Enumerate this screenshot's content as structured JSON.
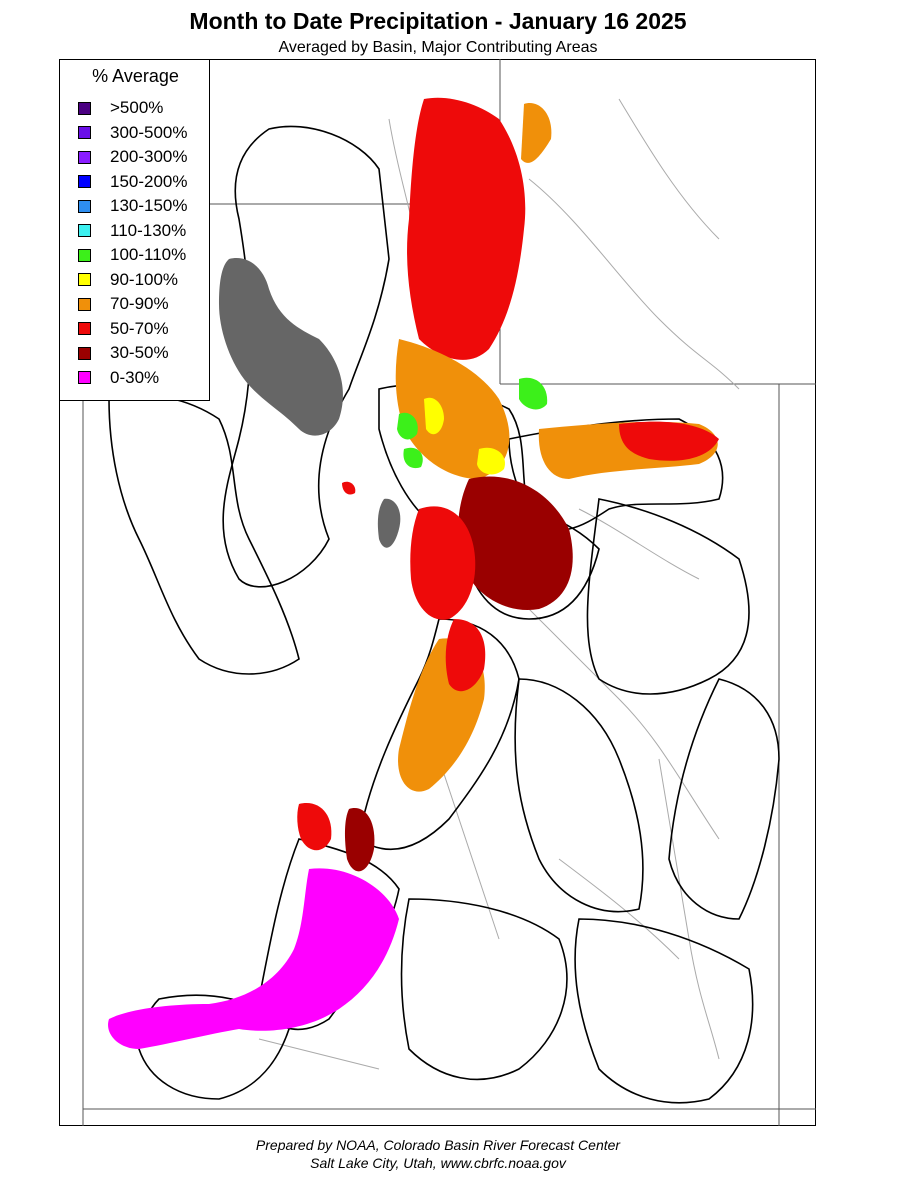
{
  "title": "Month to Date Precipitation - January 16 2025",
  "subtitle": "Averaged by Basin, Major Contributing Areas",
  "legend": {
    "title": "% Average",
    "items": [
      {
        "label": ">500%",
        "color": "#4b0082"
      },
      {
        "label": "300-500%",
        "color": "#6a0ee8"
      },
      {
        "label": "200-300%",
        "color": "#8a1cff"
      },
      {
        "label": "150-200%",
        "color": "#0000ff"
      },
      {
        "label": "130-150%",
        "color": "#2e8ef0"
      },
      {
        "label": "110-130%",
        "color": "#3cf0f0"
      },
      {
        "label": "100-110%",
        "color": "#3cf01a"
      },
      {
        "label": "90-100%",
        "color": "#ffff00"
      },
      {
        "label": "70-90%",
        "color": "#f0900a"
      },
      {
        "label": "50-70%",
        "color": "#ee0a0a"
      },
      {
        "label": "30-50%",
        "color": "#9a0000"
      },
      {
        "label": "0-30%",
        "color": "#ff00ff"
      }
    ]
  },
  "colors": {
    "lake": "#666666",
    "basin_outline": "#000000",
    "river": "#aaaaaa",
    "state_line": "#555555"
  },
  "footer": {
    "line1": "Prepared by NOAA, Colorado Basin River Forecast Center",
    "line2": "Salt Lake City, Utah, www.cbrfc.noaa.gov"
  }
}
